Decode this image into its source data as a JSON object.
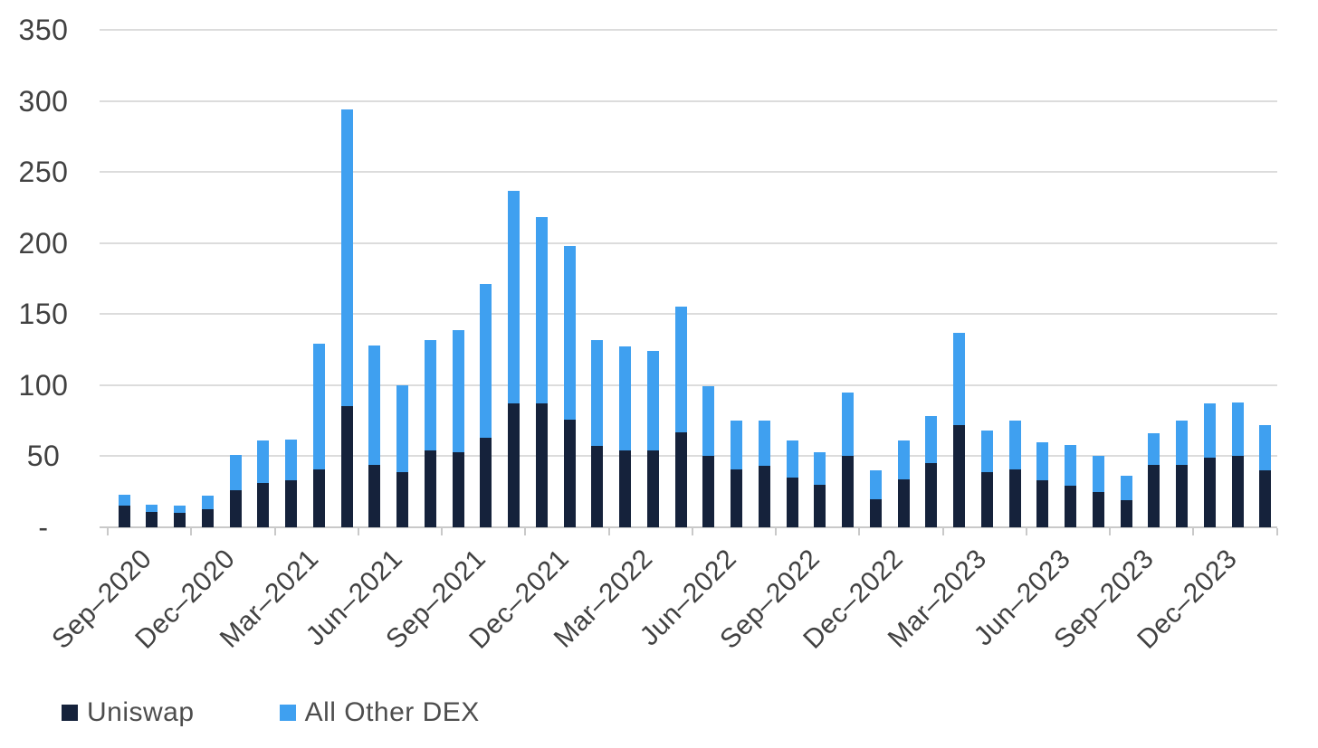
{
  "chart_data": {
    "type": "bar",
    "stacked": true,
    "title": "",
    "xlabel": "",
    "ylabel": "",
    "grid": true,
    "legend_position": "bottom-left",
    "ylim": [
      0,
      350
    ],
    "y_ticks": [
      {
        "value": 0,
        "label": "-"
      },
      {
        "value": 50,
        "label": "50"
      },
      {
        "value": 100,
        "label": "100"
      },
      {
        "value": 150,
        "label": "150"
      },
      {
        "value": 200,
        "label": "200"
      },
      {
        "value": 250,
        "label": "250"
      },
      {
        "value": 300,
        "label": "300"
      },
      {
        "value": 350,
        "label": "350"
      }
    ],
    "x": [
      "Sep-2020",
      "Oct-2020",
      "Nov-2020",
      "Dec-2020",
      "Jan-2021",
      "Feb-2021",
      "Mar-2021",
      "Apr-2021",
      "May-2021",
      "Jun-2021",
      "Jul-2021",
      "Aug-2021",
      "Sep-2021",
      "Oct-2021",
      "Nov-2021",
      "Dec-2021",
      "Jan-2022",
      "Feb-2022",
      "Mar-2022",
      "Apr-2022",
      "May-2022",
      "Jun-2022",
      "Jul-2022",
      "Aug-2022",
      "Sep-2022",
      "Oct-2022",
      "Nov-2022",
      "Dec-2022",
      "Jan-2023",
      "Feb-2023",
      "Mar-2023",
      "Apr-2023",
      "May-2023",
      "Jun-2023",
      "Jul-2023",
      "Aug-2023",
      "Sep-2023",
      "Oct-2023",
      "Nov-2023",
      "Dec-2023",
      "Jan-2024",
      "Feb-2024"
    ],
    "x_tick_labels": [
      "Sep–2020",
      "Dec–2020",
      "Mar–2021",
      "Jun–2021",
      "Sep–2021",
      "Dec–2021",
      "Mar–2022",
      "Jun–2022",
      "Sep–2022",
      "Dec–2022",
      "Mar–2023",
      "Jun–2023",
      "Sep–2023",
      "Dec–2023"
    ],
    "series": [
      {
        "name": "Uniswap",
        "color": "#15223B",
        "values": [
          15,
          11,
          10,
          13,
          26,
          31,
          33,
          41,
          85,
          44,
          39,
          54,
          53,
          63,
          87,
          87,
          76,
          57,
          54,
          54,
          67,
          50,
          41,
          43,
          35,
          30,
          50,
          20,
          34,
          45,
          72,
          39,
          41,
          33,
          29,
          25,
          19,
          44,
          44,
          49,
          50,
          40
        ]
      },
      {
        "name": "All Other DEX",
        "color": "#3FA0F0",
        "values": [
          8,
          5,
          5,
          9,
          25,
          30,
          29,
          88,
          209,
          84,
          61,
          78,
          86,
          108,
          150,
          131,
          122,
          75,
          73,
          70,
          88,
          49,
          34,
          32,
          26,
          23,
          45,
          20,
          27,
          33,
          65,
          29,
          34,
          27,
          29,
          25,
          17,
          22,
          31,
          38,
          38,
          32
        ]
      }
    ]
  },
  "legend": {
    "items": [
      {
        "label": "Uniswap",
        "color": "#15223B"
      },
      {
        "label": "All Other DEX",
        "color": "#3FA0F0"
      }
    ]
  },
  "style_colors": {
    "gridline": "#dcdcdc",
    "axis_line": "#c9c9c9",
    "axis_text": "#414141",
    "legend_text": "#4d4d4d",
    "background": "#ffffff"
  }
}
